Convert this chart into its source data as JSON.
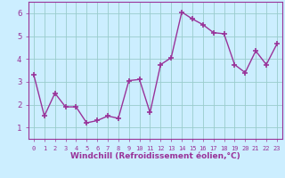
{
  "x": [
    0,
    1,
    2,
    3,
    4,
    5,
    6,
    7,
    8,
    9,
    10,
    11,
    12,
    13,
    14,
    15,
    16,
    17,
    18,
    19,
    20,
    21,
    22,
    23
  ],
  "y": [
    3.3,
    1.5,
    2.5,
    1.9,
    1.9,
    1.2,
    1.3,
    1.5,
    1.4,
    3.05,
    3.1,
    1.65,
    3.75,
    4.05,
    6.05,
    5.75,
    5.5,
    5.15,
    5.1,
    3.75,
    3.4,
    4.35,
    3.75,
    4.65
  ],
  "line_color": "#993399",
  "marker": "+",
  "marker_size": 4,
  "marker_lw": 1.2,
  "bg_color": "#cceeff",
  "grid_color": "#99cccc",
  "xlabel": "Windchill (Refroidissement éolien,°C)",
  "xlabel_color": "#993399",
  "tick_color": "#993399",
  "ylim": [
    0.5,
    6.5
  ],
  "xlim": [
    -0.5,
    23.5
  ],
  "yticks": [
    1,
    2,
    3,
    4,
    5,
    6
  ],
  "xticks": [
    0,
    1,
    2,
    3,
    4,
    5,
    6,
    7,
    8,
    9,
    10,
    11,
    12,
    13,
    14,
    15,
    16,
    17,
    18,
    19,
    20,
    21,
    22,
    23
  ],
  "tick_fontsize": 6,
  "xlabel_fontsize": 6.5,
  "linewidth": 1.0
}
